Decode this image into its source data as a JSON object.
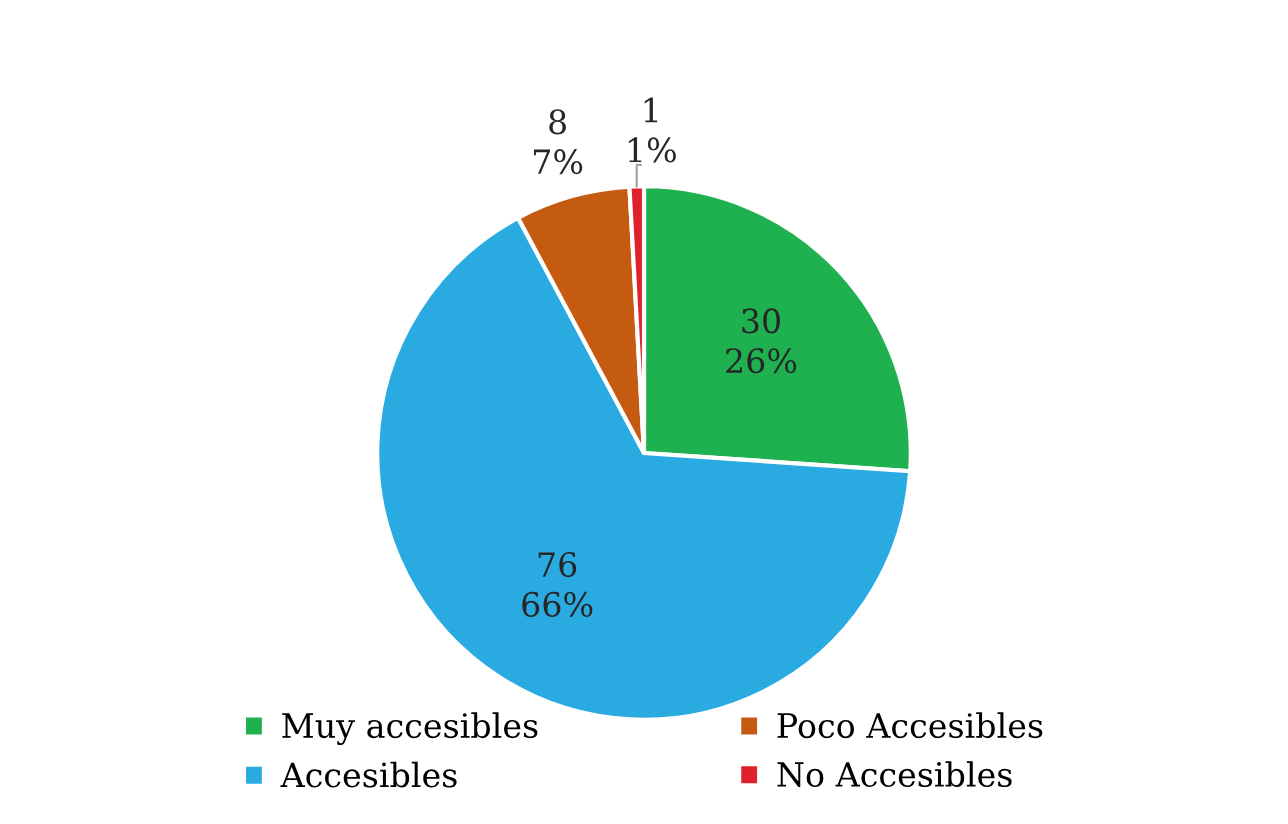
{
  "chart_data": {
    "type": "pie",
    "categories": [
      "Muy accesibles",
      "Accesibles",
      "Poco Accesibles",
      "No Accesibles"
    ],
    "values": [
      30,
      76,
      8,
      1
    ],
    "colors": [
      "#1fb050",
      "#29abe2",
      "#c55a11",
      "#e0202a"
    ],
    "value_labels": [
      "30\n26%",
      "76\n66%",
      "8\n7%",
      "1\n1%"
    ],
    "legend": "bottom"
  }
}
